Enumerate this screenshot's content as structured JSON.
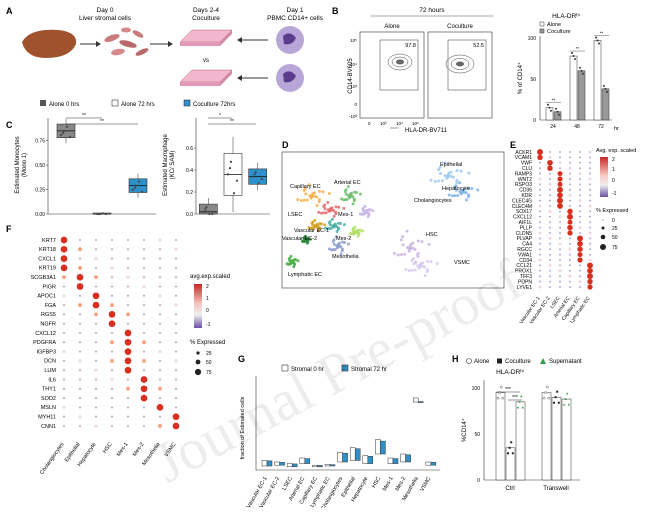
{
  "panel_labels": {
    "A": "A",
    "B": "B",
    "C": "C",
    "D": "D",
    "E": "E",
    "F": "F",
    "G": "G",
    "H": "H"
  },
  "watermark": "Journal Pre-proof",
  "panelA": {
    "day0": "Day 0",
    "day0_sub": "Liver stromal cells",
    "day24": "Days 2-4",
    "day24_sub": "Coculture",
    "day1": "Day 1",
    "day1_sub": "PBMC CD14+ cells",
    "vs": "vs"
  },
  "panelB": {
    "title": "72 hours",
    "alone": "Alone",
    "coculture": "Coculture",
    "alone_pct": "97.8",
    "coculture_pct": "52.5",
    "ylabel": "CD14-BV605",
    "xlabel": "HLA-DR-BV711",
    "ticks_x": [
      "0",
      "10³",
      "10⁴",
      "10⁵"
    ],
    "ticks_y": [
      "-10³",
      "0",
      "10³",
      "10⁴",
      "10⁵"
    ]
  },
  "panelB_bar": {
    "title": "HLA-DRʰⁱ",
    "legend": [
      "Alone",
      "Coculture"
    ],
    "ylabel": "% of CD14⁺",
    "xlabel": "hr",
    "ylim": [
      0,
      100
    ],
    "yticks": [
      "0",
      "50",
      "100"
    ],
    "categories": [
      "24",
      "48",
      "72"
    ],
    "series": [
      {
        "name": "Alone",
        "values": [
          15,
          78,
          97
        ]
      },
      {
        "name": "Coculture",
        "values": [
          10,
          60,
          38
        ]
      }
    ],
    "sig": [
      "**",
      "**",
      "**"
    ]
  },
  "panelC": {
    "legend": [
      "Alone 0 hrs",
      "Alone 72 hrs",
      "Coculture 72hrs"
    ],
    "left_ylabel": "Estimated Monocytes\n(Mono 1)",
    "right_ylabel": "Estimated Macrophage\n(KC/ SAM)",
    "left_ylim": [
      0,
      0.9
    ],
    "left_yticks": [
      "0.00",
      "0.25",
      "0.50",
      "0.75"
    ],
    "right_ylim": [
      0,
      0.8
    ],
    "right_yticks": [
      "0.0",
      "0.2",
      "0.4",
      "0.6"
    ],
    "sig": "**",
    "sig2": "*"
  },
  "chart_data": [
    {
      "type": "bar",
      "title": "HLA-DRʰⁱ",
      "categories": [
        "24",
        "48",
        "72"
      ],
      "series": [
        {
          "name": "Alone",
          "values": [
            15,
            78,
            97
          ]
        },
        {
          "name": "Coculture",
          "values": [
            10,
            60,
            38
          ]
        }
      ],
      "ylabel": "% of CD14⁺",
      "xlabel": "hr",
      "ylim": [
        0,
        100
      ]
    },
    {
      "type": "box",
      "ylabel": "Estimated Monocytes (Mono 1)",
      "groups": [
        "Alone 0 hrs",
        "Alone 72 hrs",
        "Coculture 72hrs"
      ],
      "medians": [
        0.85,
        0.0,
        0.29
      ],
      "ylim": [
        0,
        0.9
      ]
    },
    {
      "type": "box",
      "ylabel": "Estimated Macrophage (KC/ SAM)",
      "groups": [
        "Alone 0 hrs",
        "Alone 72 hrs",
        "Coculture 72hrs"
      ],
      "medians": [
        0.02,
        0.36,
        0.34
      ],
      "ylim": [
        0,
        0.8
      ]
    },
    {
      "type": "bar",
      "title": "HLA-DRʰⁱ",
      "categories": [
        "Ctrl",
        "Transwell"
      ],
      "series": [
        {
          "name": "Alone",
          "values": [
            95,
            95
          ]
        },
        {
          "name": "Coculture",
          "values": [
            35,
            90
          ]
        },
        {
          "name": "Supernatant",
          "values": [
            85,
            88
          ]
        }
      ],
      "ylabel": "%CD14⁺",
      "ylim": [
        0,
        100
      ]
    }
  ],
  "panelD": {
    "clusters": [
      "Epithelial",
      "Capillary EC",
      "Arterial EC",
      "Hepatocyte",
      "Cholangiocytes",
      "LSEC",
      "Mes-1",
      "Vascular EC-1",
      "Vascular EC-2",
      "Mes-2",
      "HSC",
      "Mesothelia",
      "Lymphatic EC",
      "VSMC"
    ]
  },
  "panelE": {
    "genes": [
      "ACKR1",
      "VCAM1",
      "VWF",
      "CLU",
      "RAMP3",
      "WNT2",
      "RSPO3",
      "CD36",
      "KDR",
      "CLEC4G",
      "CLEC4M",
      "SOX17",
      "CXCL12",
      "AIF1L",
      "PLLP",
      "CLDN5",
      "PLVAP",
      "CA4",
      "RGCC",
      "VWA1",
      "CD34",
      "CCL21",
      "PROX1",
      "TFF3",
      "PDPN",
      "LYVE1"
    ],
    "columns": [
      "Vascular EC-1",
      "Vascular EC-2",
      "LSEC",
      "Arterial EC",
      "Capillary EC",
      "Lymphatic EC"
    ],
    "legend_title": "Avg. exp. scaled",
    "legend_ticks": [
      "2",
      "1",
      "0",
      "-1"
    ],
    "pct_title": "% Expressed",
    "pct_ticks": [
      "0",
      "25",
      "50",
      "75"
    ]
  },
  "panelF": {
    "genes": [
      "KRT7",
      "KRT18",
      "CXCL1",
      "KRT19",
      "SCGB3A1",
      "PIGR",
      "APOC1",
      "FGA",
      "RGS5",
      "NGFR",
      "CXCL12",
      "PDGFRA",
      "IGFBP3",
      "DCN",
      "LUM",
      "IL6",
      "THY1",
      "SOD2",
      "MSLN",
      "MYH11",
      "CNN1"
    ],
    "columns": [
      "Cholangiocytes",
      "Epithelial",
      "Hepatocyte",
      "HSC",
      "Mes-1",
      "Mes-2",
      "Mesothelia",
      "VSMC"
    ],
    "legend_title": "avg.exp.scaled",
    "legend_ticks": [
      "2",
      "1",
      "0",
      "-1"
    ],
    "pct_title": "% Expressed",
    "pct_ticks": [
      "25",
      "50",
      "75"
    ]
  },
  "panelG": {
    "legend": [
      "Stromal 0 hr",
      "Stromal 72 hr"
    ],
    "ylabel": "fraction of Estimated cells",
    "categories": [
      "Vascular EC-1",
      "Vascular EC-2",
      "LSEC",
      "Arterial EC",
      "Capillary EC",
      "Lymphatic EC",
      "Cholangiocytes",
      "Epithelial",
      "Hepatocyte",
      "HSC",
      "Mes-1",
      "Mes-2",
      "Mesothelia",
      "VSMC"
    ]
  },
  "panelH": {
    "legend": [
      "Alone",
      "Coculture",
      "Supernatant"
    ],
    "title": "HLA-DRʰⁱ",
    "ylabel": "%CD14⁺",
    "yticks": [
      "0",
      "50",
      "100"
    ],
    "categories": [
      "Ctrl",
      "Transwell"
    ],
    "sig": [
      "***",
      "***"
    ]
  }
}
